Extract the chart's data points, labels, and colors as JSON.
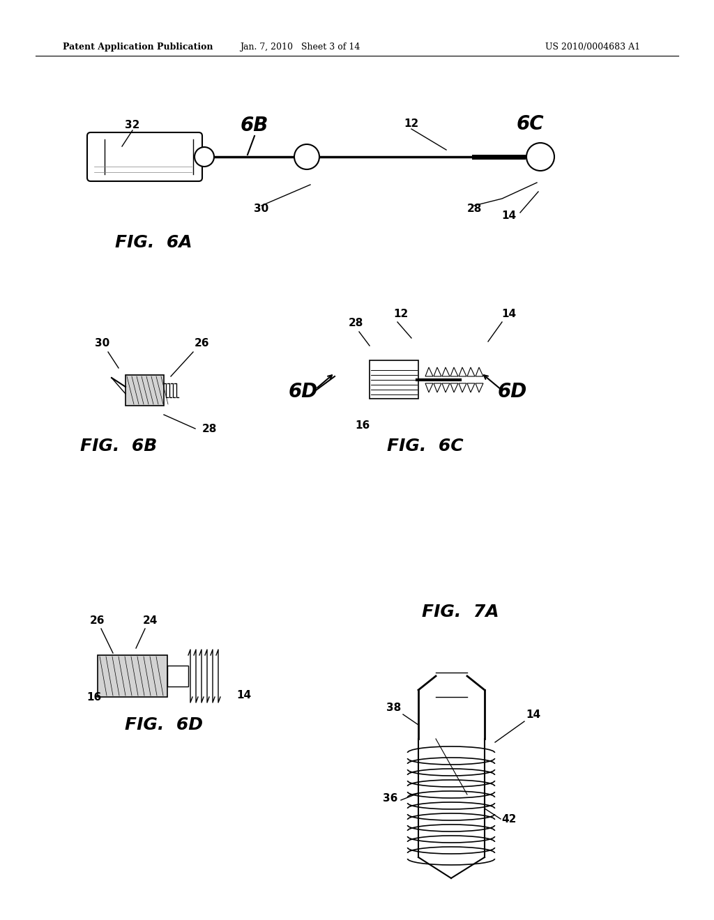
{
  "bg_color": "#ffffff",
  "text_color": "#000000",
  "header_left": "Patent Application Publication",
  "header_mid": "Jan. 7, 2010   Sheet 3 of 14",
  "header_right": "US 2010/0004683 A1",
  "fig_labels": {
    "6A": [
      210,
      345
    ],
    "6B": [
      200,
      630
    ],
    "6C": [
      600,
      630
    ],
    "6D_label": "FIG. 6D",
    "7A_label": "FIG. 7A"
  }
}
